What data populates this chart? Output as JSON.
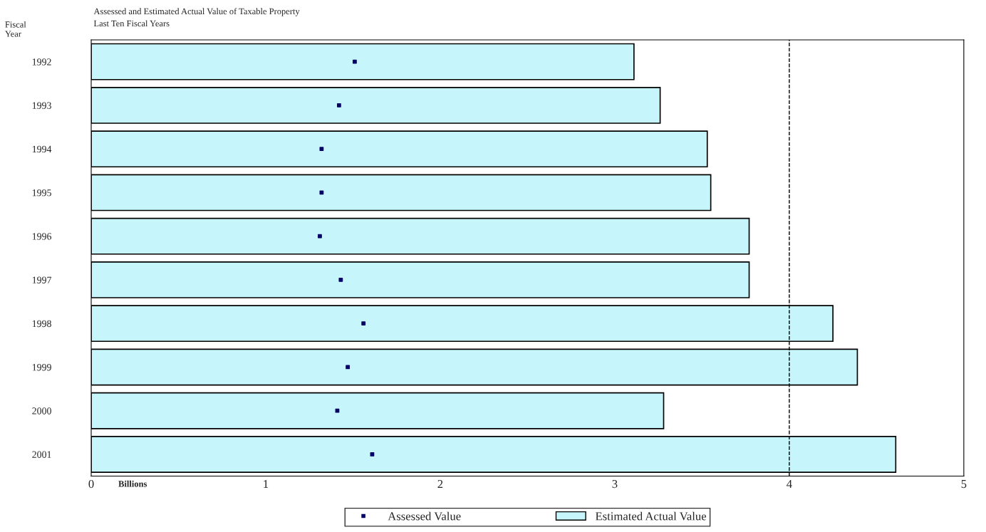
{
  "chart_data": {
    "type": "bar",
    "orientation": "horizontal",
    "title": "Assessed and Estimated Actual Value of Taxable Property",
    "subtitle": "Last Ten Fiscal Years",
    "ylabel": "Fiscal Year",
    "xlabel": "Billions",
    "categories": [
      "1992",
      "1993",
      "1994",
      "1995",
      "1996",
      "1997",
      "1998",
      "1999",
      "2000",
      "2001"
    ],
    "series": [
      {
        "name": "Assessed Value",
        "type": "scatter",
        "color": "#000066",
        "marker": "square",
        "values": [
          1.51,
          1.42,
          1.32,
          1.32,
          1.31,
          1.43,
          1.56,
          1.47,
          1.41,
          1.61
        ]
      },
      {
        "name": "Estimated Actual Value",
        "color": "#c6f6fb",
        "values": [
          3.11,
          3.26,
          3.53,
          3.55,
          3.77,
          3.77,
          4.25,
          4.39,
          3.28,
          4.61
        ]
      }
    ],
    "xlim": [
      0,
      5
    ],
    "xticks": [
      0,
      1,
      2,
      3,
      4,
      5
    ],
    "ref_lines": [
      {
        "axis": "x",
        "value": 4,
        "line_style": "dashed",
        "color": "#000000"
      }
    ],
    "legend": "bottom",
    "grid": false
  }
}
